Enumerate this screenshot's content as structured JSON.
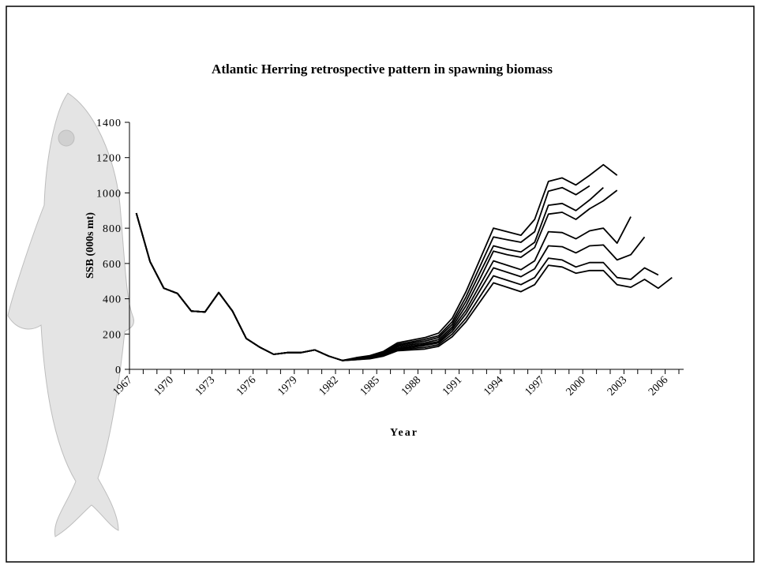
{
  "chart_data": {
    "type": "line",
    "title": "Atlantic Herring retrospective pattern in spawning biomass",
    "x_label": "Year",
    "y_label": "SSB (000s mt)",
    "categories": [
      1967,
      null,
      null,
      1970,
      null,
      null,
      1973,
      null,
      null,
      1976,
      null,
      null,
      1979,
      null,
      null,
      1982,
      null,
      null,
      1985,
      null,
      null,
      1988,
      null,
      null,
      1991,
      null,
      null,
      1994,
      null,
      null,
      1997,
      null,
      null,
      2000,
      null,
      null,
      2003,
      null,
      null,
      2006
    ],
    "ylim": [
      0,
      1400
    ],
    "yticks": [
      0,
      200,
      400,
      600,
      800,
      1000,
      1200,
      1400
    ],
    "series": [
      {
        "color": "#000000",
        "values": [
          885,
          610,
          460,
          430,
          330,
          325,
          435,
          330,
          175,
          125,
          85,
          95,
          95,
          110,
          75,
          50,
          55,
          60,
          75,
          105,
          110,
          115,
          130,
          185,
          270,
          380,
          490,
          465,
          440,
          480,
          590,
          580,
          545,
          560,
          560,
          480,
          465,
          510,
          460,
          520
        ]
      },
      {
        "color": "#000000",
        "values": [
          885,
          610,
          460,
          430,
          330,
          325,
          435,
          330,
          175,
          125,
          85,
          95,
          95,
          110,
          75,
          50,
          55,
          62,
          78,
          110,
          118,
          125,
          140,
          200,
          290,
          410,
          530,
          505,
          480,
          520,
          630,
          620,
          580,
          605,
          605,
          520,
          510,
          575,
          535,
          null
        ]
      },
      {
        "color": "#000000",
        "values": [
          885,
          610,
          460,
          430,
          330,
          325,
          435,
          330,
          175,
          125,
          85,
          95,
          95,
          110,
          75,
          50,
          57,
          65,
          82,
          115,
          125,
          135,
          150,
          215,
          315,
          445,
          575,
          550,
          525,
          570,
          700,
          695,
          660,
          700,
          705,
          620,
          650,
          750,
          null,
          null
        ]
      },
      {
        "color": "#000000",
        "values": [
          885,
          610,
          460,
          430,
          330,
          325,
          435,
          330,
          175,
          125,
          85,
          95,
          95,
          110,
          75,
          50,
          58,
          67,
          86,
          120,
          132,
          142,
          158,
          228,
          335,
          475,
          615,
          590,
          565,
          615,
          780,
          775,
          740,
          785,
          800,
          715,
          865,
          null,
          null,
          null
        ]
      },
      {
        "color": "#000000",
        "values": [
          885,
          610,
          460,
          430,
          330,
          325,
          435,
          330,
          175,
          125,
          85,
          95,
          95,
          110,
          75,
          50,
          60,
          70,
          90,
          128,
          140,
          150,
          168,
          240,
          360,
          510,
          670,
          650,
          635,
          690,
          880,
          890,
          850,
          910,
          955,
          1015,
          null,
          null,
          null,
          null
        ]
      },
      {
        "color": "#000000",
        "values": [
          885,
          610,
          460,
          430,
          330,
          325,
          435,
          330,
          175,
          125,
          85,
          95,
          95,
          110,
          75,
          50,
          62,
          72,
          94,
          135,
          148,
          160,
          180,
          255,
          385,
          545,
          700,
          680,
          665,
          720,
          930,
          940,
          900,
          960,
          1030,
          null,
          null,
          null,
          null,
          null
        ]
      },
      {
        "color": "#000000",
        "values": [
          885,
          610,
          460,
          430,
          330,
          325,
          435,
          330,
          175,
          125,
          85,
          95,
          95,
          110,
          75,
          50,
          64,
          75,
          98,
          142,
          155,
          170,
          190,
          270,
          410,
          580,
          750,
          735,
          720,
          780,
          1010,
          1030,
          990,
          1040,
          null,
          null,
          null,
          null,
          null,
          null
        ]
      },
      {
        "color": "#000000",
        "values": [
          885,
          610,
          460,
          430,
          330,
          325,
          435,
          330,
          175,
          125,
          85,
          95,
          95,
          110,
          75,
          50,
          66,
          78,
          102,
          150,
          165,
          180,
          205,
          290,
          440,
          620,
          800,
          780,
          760,
          850,
          1065,
          1085,
          1045,
          1100,
          1160,
          1100,
          null,
          null,
          null,
          null
        ]
      }
    ]
  }
}
